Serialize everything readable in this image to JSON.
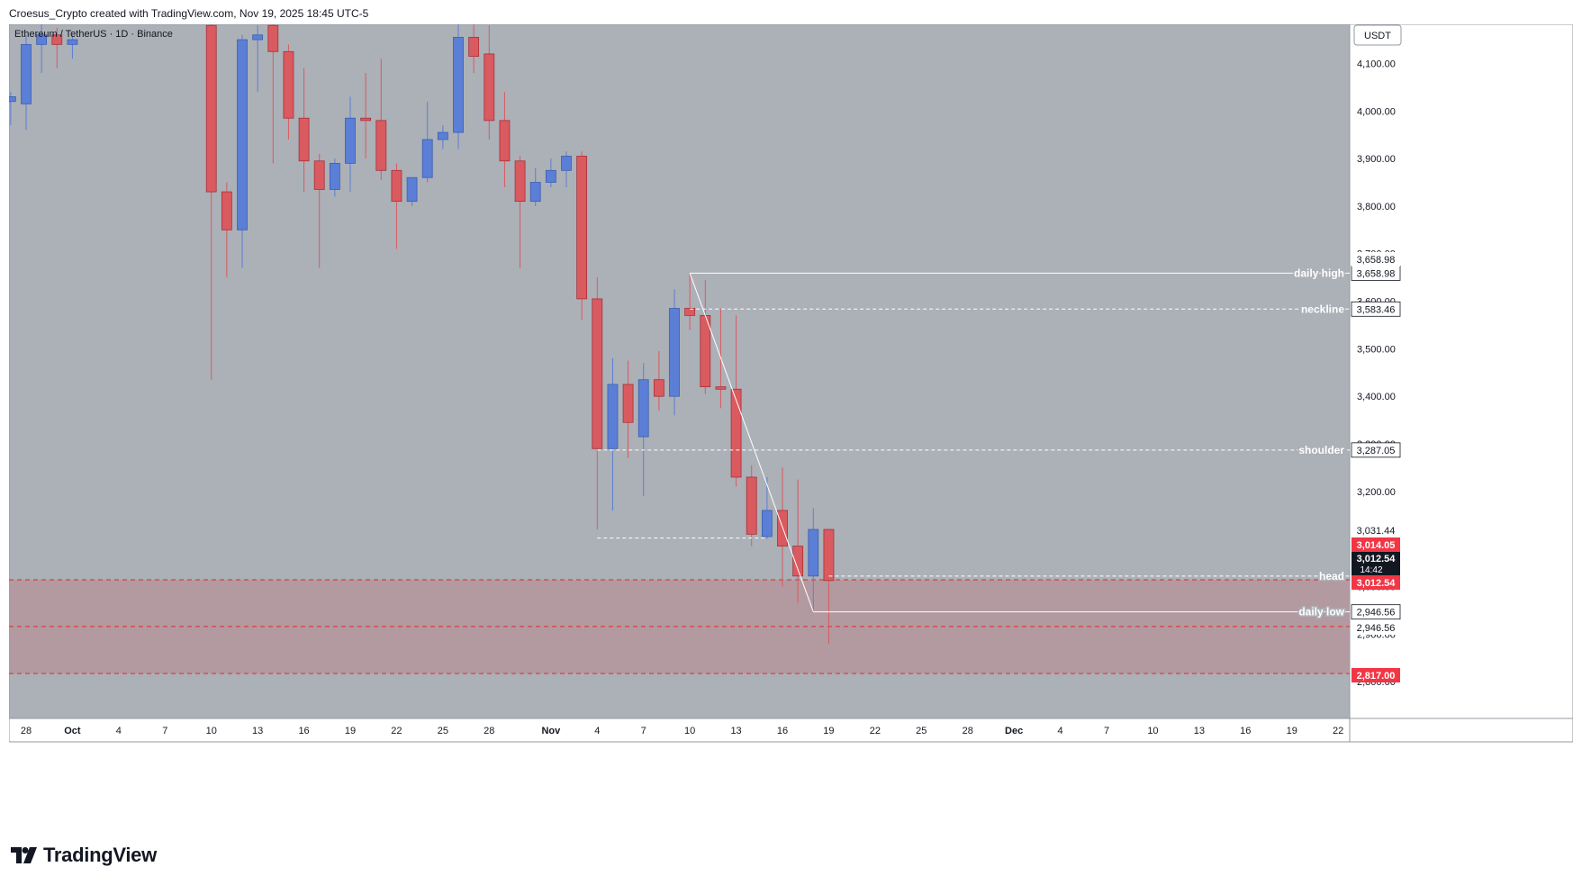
{
  "header": {
    "attribution": "Croesus_Crypto created with TradingView.com, Nov 19, 2025 18:45 UTC-5"
  },
  "chart_data": {
    "type": "candlestick",
    "symbol_label": "Ethereum / TetherUS · 1D · Binance",
    "currency_button": "USDT",
    "colors": {
      "background": "#acb0b7",
      "up": "#5b7fd6",
      "down": "#d95a5f",
      "zone_fill": "#b39aa0",
      "zone_line": "#e02a2a",
      "label_red": "#f23645",
      "label_black": "#131722"
    },
    "y_ticks": [
      "4,100.00",
      "4,000.00",
      "3,900.00",
      "3,800.00",
      "3,700.00",
      "3,600.00",
      "3,500.00",
      "3,400.00",
      "3,300.00",
      "3,200.00",
      "3,000.00",
      "2,900.00",
      "2,800.00"
    ],
    "y_tick_values": [
      4100,
      4000,
      3900,
      3800,
      3700,
      3600,
      3500,
      3400,
      3300,
      3200,
      3000,
      2900,
      2800
    ],
    "x_ticks": [
      "28",
      "Oct",
      "4",
      "7",
      "10",
      "13",
      "16",
      "19",
      "22",
      "25",
      "28",
      "Nov",
      "4",
      "7",
      "10",
      "13",
      "16",
      "19",
      "22",
      "25",
      "28",
      "Dec",
      "4",
      "7",
      "10",
      "13",
      "16",
      "19",
      "22"
    ],
    "x_tick_days": [
      0,
      3,
      6,
      9,
      12,
      15,
      18,
      21,
      24,
      27,
      30,
      34,
      37,
      40,
      43,
      46,
      49,
      52,
      55,
      58,
      61,
      64,
      67,
      70,
      73,
      76,
      79,
      82,
      85
    ],
    "candles": [
      {
        "d": -1,
        "o": 4020,
        "h": 4040,
        "l": 3970,
        "c": 4030
      },
      {
        "d": 0,
        "o": 4015,
        "h": 4160,
        "l": 3960,
        "c": 4140
      },
      {
        "d": 1,
        "o": 4140,
        "h": 4185,
        "l": 4080,
        "c": 4160
      },
      {
        "d": 2,
        "o": 4160,
        "h": 4175,
        "l": 4090,
        "c": 4140
      },
      {
        "d": 3,
        "o": 4140,
        "h": 4160,
        "l": 4110,
        "c": 4150
      },
      {
        "d": 12,
        "o": 4180,
        "h": 4220,
        "l": 3435,
        "c": 3830
      },
      {
        "d": 13,
        "o": 3830,
        "h": 3850,
        "l": 3650,
        "c": 3750
      },
      {
        "d": 14,
        "o": 3750,
        "h": 4160,
        "l": 3670,
        "c": 4150
      },
      {
        "d": 15,
        "o": 4150,
        "h": 4180,
        "l": 4040,
        "c": 4160
      },
      {
        "d": 16,
        "o": 4180,
        "h": 4200,
        "l": 3890,
        "c": 4125
      },
      {
        "d": 17,
        "o": 4125,
        "h": 4140,
        "l": 3940,
        "c": 3985
      },
      {
        "d": 18,
        "o": 3985,
        "h": 4090,
        "l": 3830,
        "c": 3895
      },
      {
        "d": 19,
        "o": 3895,
        "h": 3910,
        "l": 3670,
        "c": 3835
      },
      {
        "d": 20,
        "o": 3835,
        "h": 3900,
        "l": 3820,
        "c": 3890
      },
      {
        "d": 21,
        "o": 3890,
        "h": 4030,
        "l": 3830,
        "c": 3985
      },
      {
        "d": 22,
        "o": 3985,
        "h": 4080,
        "l": 3900,
        "c": 3980
      },
      {
        "d": 23,
        "o": 3980,
        "h": 4110,
        "l": 3855,
        "c": 3875
      },
      {
        "d": 24,
        "o": 3875,
        "h": 3890,
        "l": 3710,
        "c": 3810
      },
      {
        "d": 25,
        "o": 3810,
        "h": 3860,
        "l": 3800,
        "c": 3860
      },
      {
        "d": 26,
        "o": 3860,
        "h": 4020,
        "l": 3850,
        "c": 3940
      },
      {
        "d": 27,
        "o": 3940,
        "h": 3970,
        "l": 3920,
        "c": 3955
      },
      {
        "d": 28,
        "o": 3955,
        "h": 4190,
        "l": 3920,
        "c": 4155
      },
      {
        "d": 29,
        "o": 4155,
        "h": 4190,
        "l": 4080,
        "c": 4115
      },
      {
        "d": 30,
        "o": 4120,
        "h": 4180,
        "l": 3940,
        "c": 3980
      },
      {
        "d": 31,
        "o": 3980,
        "h": 4040,
        "l": 3840,
        "c": 3895
      },
      {
        "d": 32,
        "o": 3895,
        "h": 3905,
        "l": 3670,
        "c": 3810
      },
      {
        "d": 33,
        "o": 3810,
        "h": 3880,
        "l": 3800,
        "c": 3850
      },
      {
        "d": 34,
        "o": 3850,
        "h": 3900,
        "l": 3840,
        "c": 3875
      },
      {
        "d": 35,
        "o": 3875,
        "h": 3915,
        "l": 3840,
        "c": 3905
      },
      {
        "d": 36,
        "o": 3905,
        "h": 3915,
        "l": 3560,
        "c": 3605
      },
      {
        "d": 37,
        "o": 3605,
        "h": 3650,
        "l": 3120,
        "c": 3290
      },
      {
        "d": 38,
        "o": 3290,
        "h": 3480,
        "l": 3160,
        "c": 3425
      },
      {
        "d": 39,
        "o": 3425,
        "h": 3475,
        "l": 3270,
        "c": 3345
      },
      {
        "d": 40,
        "o": 3315,
        "h": 3470,
        "l": 3190,
        "c": 3435
      },
      {
        "d": 41,
        "o": 3435,
        "h": 3495,
        "l": 3370,
        "c": 3400
      },
      {
        "d": 42,
        "o": 3400,
        "h": 3625,
        "l": 3360,
        "c": 3585
      },
      {
        "d": 43,
        "o": 3585,
        "h": 3659,
        "l": 3540,
        "c": 3570
      },
      {
        "d": 44,
        "o": 3570,
        "h": 3645,
        "l": 3405,
        "c": 3420
      },
      {
        "d": 45,
        "o": 3420,
        "h": 3585,
        "l": 3375,
        "c": 3415
      },
      {
        "d": 46,
        "o": 3415,
        "h": 3570,
        "l": 3210,
        "c": 3230
      },
      {
        "d": 47,
        "o": 3230,
        "h": 3255,
        "l": 3085,
        "c": 3110
      },
      {
        "d": 48,
        "o": 3105,
        "h": 3230,
        "l": 3100,
        "c": 3160
      },
      {
        "d": 49,
        "o": 3160,
        "h": 3250,
        "l": 3000,
        "c": 3085
      },
      {
        "d": 50,
        "o": 3085,
        "h": 3225,
        "l": 2965,
        "c": 3022
      },
      {
        "d": 51,
        "o": 3022,
        "h": 3165,
        "l": 2947,
        "c": 3120
      },
      {
        "d": 52,
        "o": 3120,
        "h": 3120,
        "l": 2880,
        "c": 3012.54
      }
    ],
    "levels": [
      {
        "label": "daily high",
        "value": 3658.98,
        "price_label": "3,658.98",
        "style": "solid",
        "start_day": 43
      },
      {
        "label": "neckline",
        "value": 3583.46,
        "price_label": "3,583.46",
        "style": "dashed",
        "start_day": 43
      },
      {
        "label": "shoulder",
        "value": 3287.05,
        "price_label": "3,287.05",
        "style": "dashed",
        "start_day": 37
      },
      {
        "label": "head",
        "value": 3022,
        "price_label": "",
        "style": "dashed",
        "start_day": 52
      },
      {
        "label": "daily low",
        "value": 2946.56,
        "price_label": "2,946.56",
        "style": "solid",
        "start_day": 51
      }
    ],
    "left_dashed_segment": {
      "value": 3102,
      "start_day": 37,
      "end_day": 48
    },
    "zone": {
      "top": 3014,
      "mid": 2916,
      "bottom": 2817
    },
    "zone_line_labels": [
      "3,012.54",
      "2,946.56",
      "2,817.00"
    ],
    "trend_line": {
      "from_day": 43,
      "from_value": 3659,
      "to_day": 51,
      "to_value": 2947
    },
    "price_labels": {
      "daily_high_upper": "3,658.98",
      "last_close": "3,031.44",
      "current_red": "3,014.05",
      "current_black_price": "3,012.54",
      "current_black_timer": "14:42",
      "zone_top": "3,012.54",
      "daily_low_upper": "2,946.56",
      "zone_mid": "2,946.56",
      "zone_bottom": "2,817.00"
    }
  },
  "footer": {
    "brand": "TradingView"
  }
}
